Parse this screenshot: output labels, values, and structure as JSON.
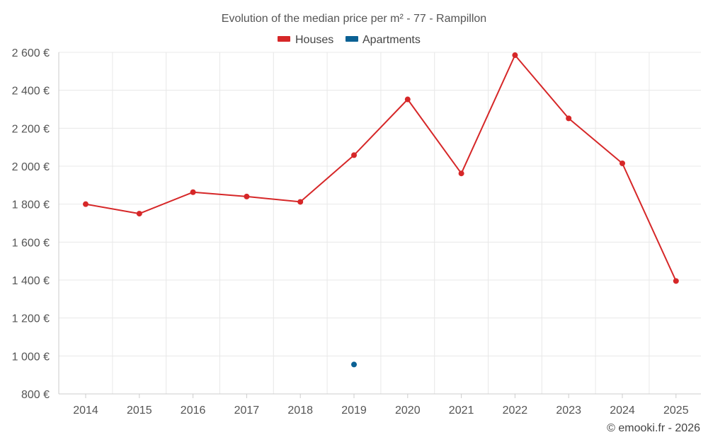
{
  "chart_data": {
    "type": "line",
    "title": "Evolution of the median price per m² - 77 - Rampillon",
    "categories": [
      "2014",
      "2015",
      "2016",
      "2017",
      "2018",
      "2019",
      "2020",
      "2021",
      "2022",
      "2023",
      "2024",
      "2025"
    ],
    "series": [
      {
        "name": "Houses",
        "color": "#d62728",
        "values": [
          1800,
          1750,
          1863,
          1840,
          1812,
          2058,
          2352,
          1962,
          2585,
          2252,
          2015,
          1395
        ]
      },
      {
        "name": "Apartments",
        "color": "#0b6194",
        "values": [
          null,
          null,
          null,
          null,
          null,
          955,
          null,
          null,
          null,
          null,
          null,
          null
        ]
      }
    ],
    "ylim": [
      800,
      2600
    ],
    "yticks": [
      800,
      1000,
      1200,
      1400,
      1600,
      1800,
      2000,
      2200,
      2400,
      2600
    ],
    "ytick_labels": [
      "800 €",
      "1 000 €",
      "1 200 €",
      "1 400 €",
      "1 600 €",
      "1 800 €",
      "2 000 €",
      "2 200 €",
      "2 400 €",
      "2 600 €"
    ],
    "grid": true,
    "legend_position": "top-center",
    "xlabel": "",
    "ylabel": ""
  },
  "footer": {
    "credit": "© emooki.fr - 2026"
  }
}
